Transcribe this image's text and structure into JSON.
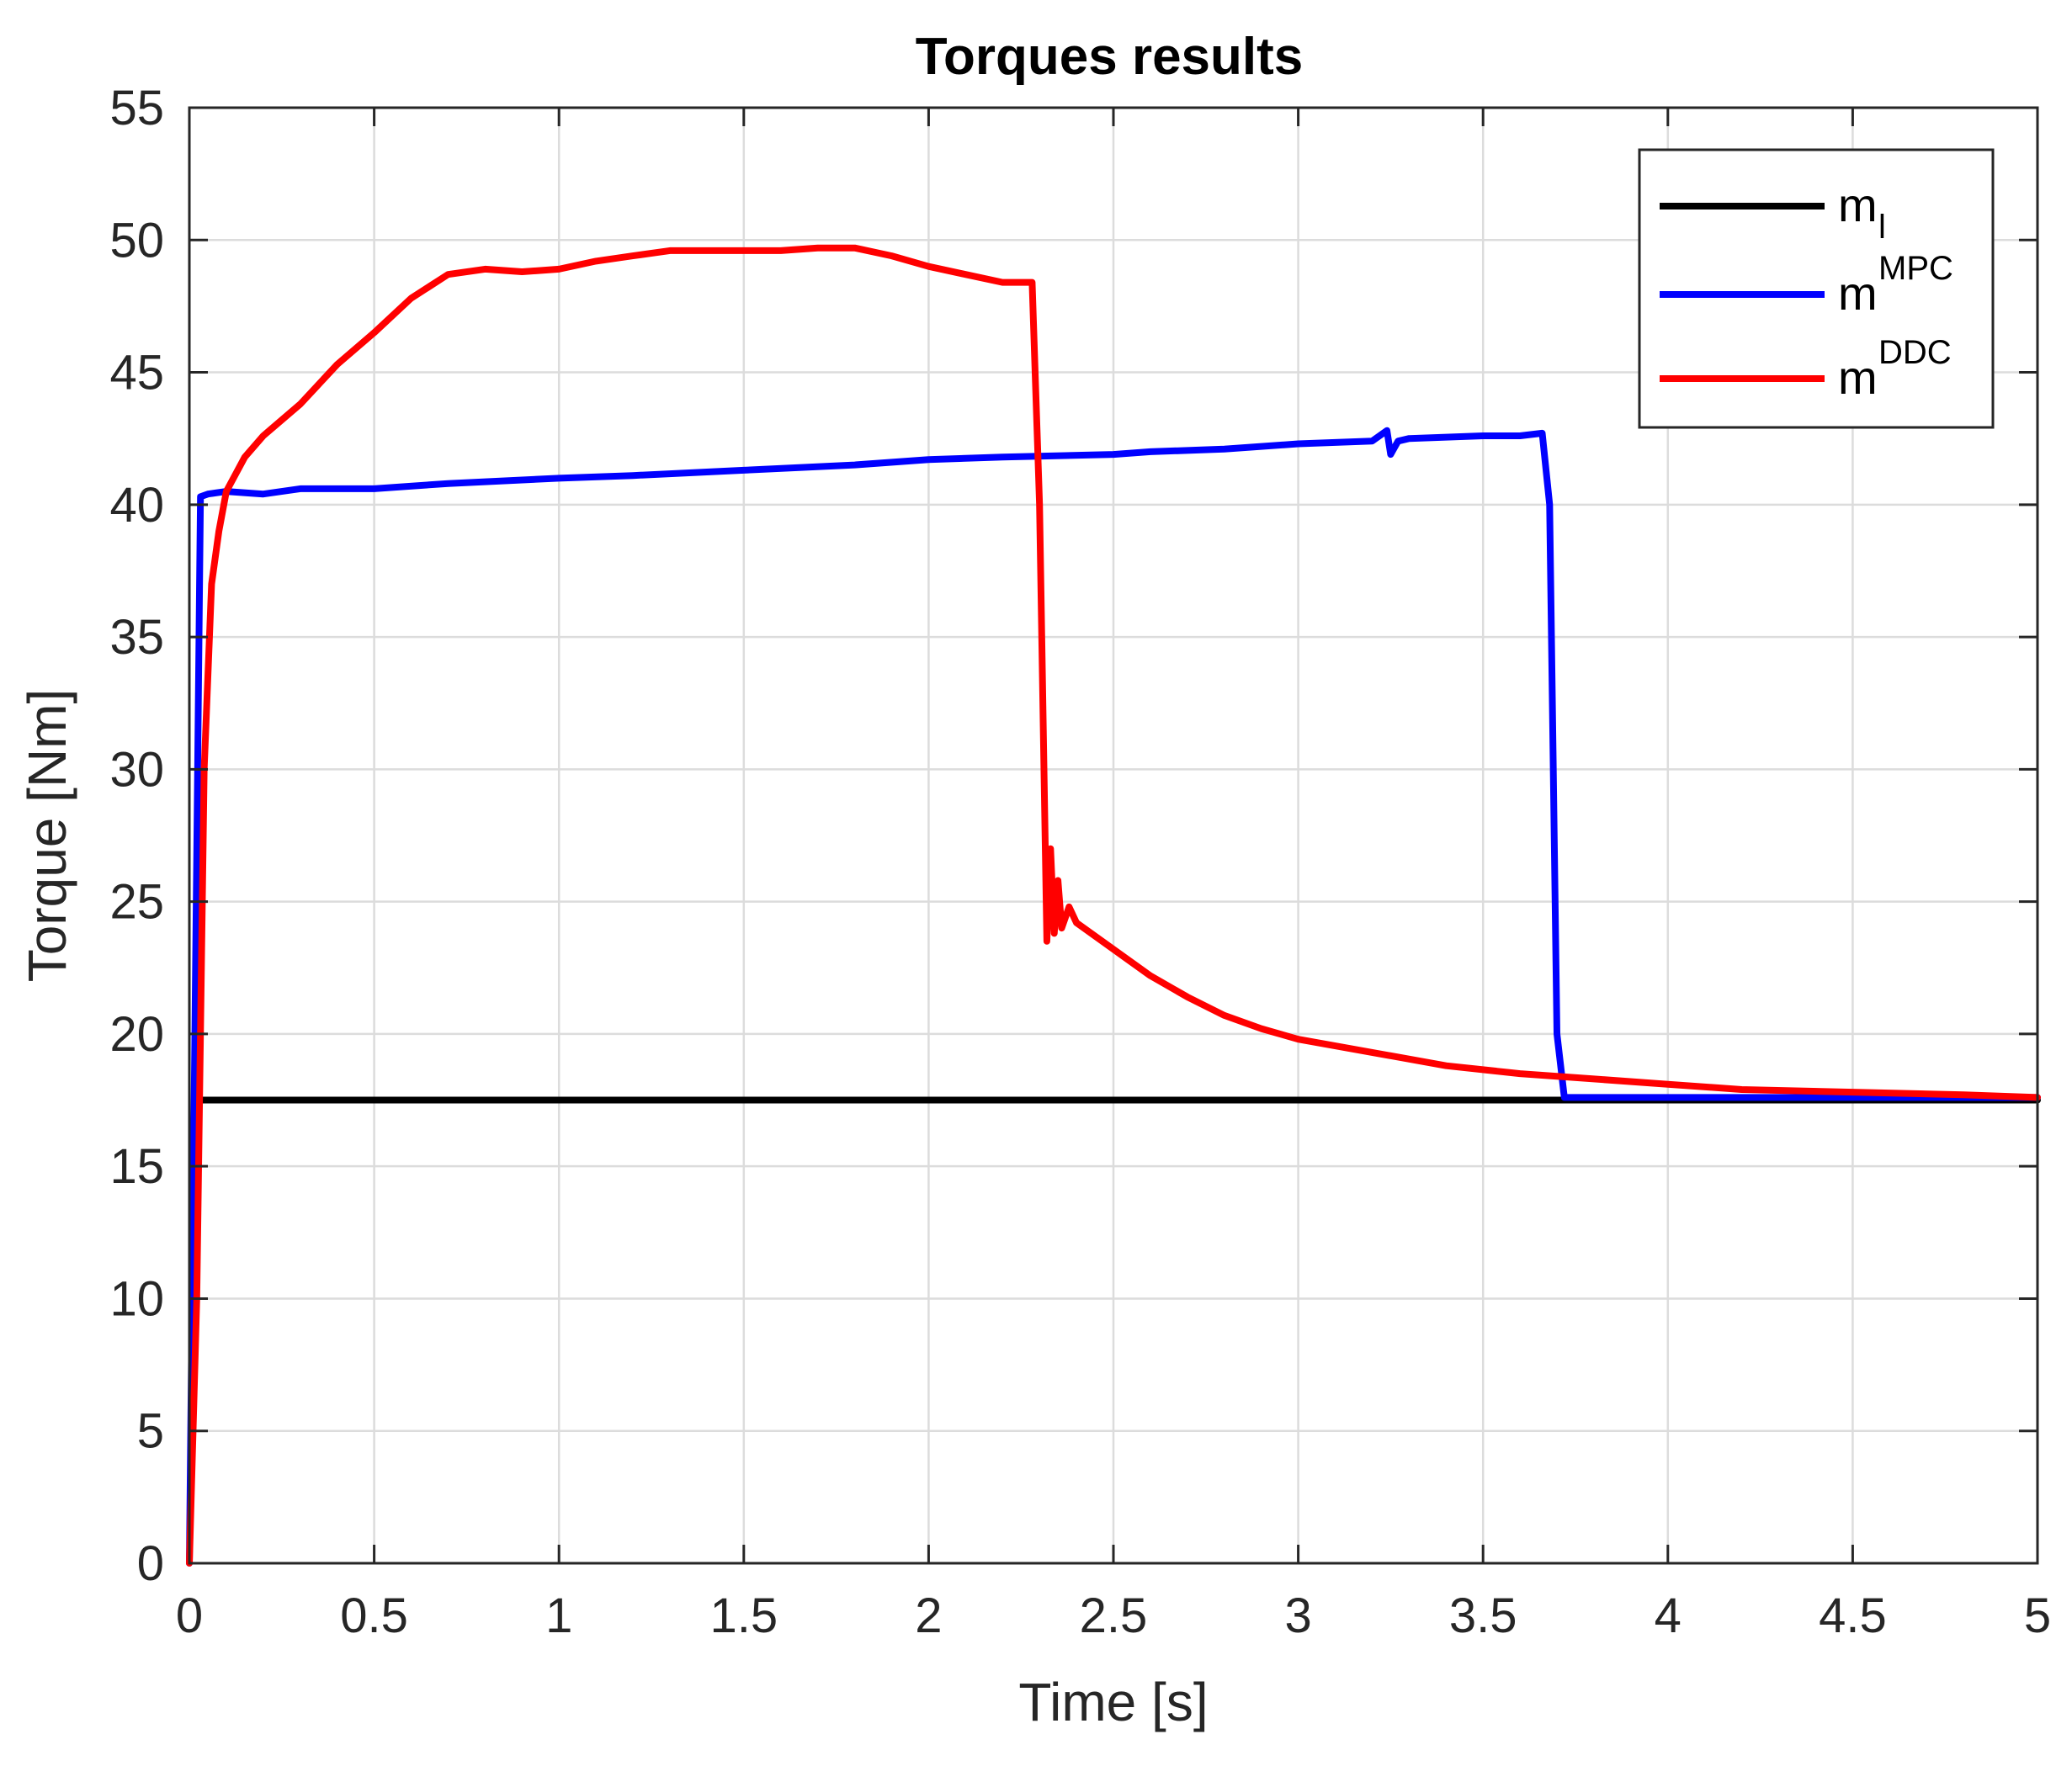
{
  "chart_data": {
    "type": "line",
    "title": "Torques results",
    "xlabel": "Time [s]",
    "ylabel": "Torque [Nm]",
    "xlim": [
      0,
      5
    ],
    "ylim": [
      0,
      55
    ],
    "xticks": [
      0,
      0.5,
      1,
      1.5,
      2,
      2.5,
      3,
      3.5,
      4,
      4.5,
      5
    ],
    "xtick_labels": [
      "0",
      "0.5",
      "1",
      "1.5",
      "2",
      "2.5",
      "3",
      "3.5",
      "4",
      "4.5",
      "5"
    ],
    "yticks": [
      0,
      5,
      10,
      15,
      20,
      25,
      30,
      35,
      40,
      45,
      50,
      55
    ],
    "ytick_labels": [
      "0",
      "5",
      "10",
      "15",
      "20",
      "25",
      "30",
      "35",
      "40",
      "45",
      "50",
      "55"
    ],
    "grid": true,
    "legend_position": "top-right",
    "series": [
      {
        "name": "m",
        "subscript": "l",
        "color": "#000000",
        "x": [
          0.03,
          5.0
        ],
        "y": [
          17.5,
          17.5
        ]
      },
      {
        "name": "m",
        "superscript": "MPC",
        "color": "#0000ff",
        "x": [
          0.0,
          0.03,
          0.05,
          0.1,
          0.2,
          0.3,
          0.5,
          0.7,
          1.0,
          1.2,
          1.5,
          1.8,
          2.0,
          2.2,
          2.5,
          2.6,
          2.8,
          3.0,
          3.2,
          3.24,
          3.25,
          3.27,
          3.3,
          3.5,
          3.6,
          3.66,
          3.68,
          3.7,
          3.72,
          4.0,
          4.5,
          5.0
        ],
        "y": [
          0.0,
          40.3,
          40.4,
          40.5,
          40.4,
          40.6,
          40.6,
          40.8,
          41.0,
          41.1,
          41.3,
          41.5,
          41.7,
          41.8,
          41.9,
          42.0,
          42.1,
          42.3,
          42.4,
          42.8,
          41.9,
          42.4,
          42.5,
          42.6,
          42.6,
          42.7,
          40.0,
          20.0,
          17.6,
          17.6,
          17.6,
          17.6
        ]
      },
      {
        "name": "m",
        "superscript": "DDC",
        "color": "#ff0000",
        "x": [
          0.0,
          0.02,
          0.04,
          0.06,
          0.08,
          0.1,
          0.15,
          0.2,
          0.3,
          0.4,
          0.5,
          0.6,
          0.7,
          0.8,
          0.9,
          1.0,
          1.1,
          1.2,
          1.3,
          1.4,
          1.5,
          1.6,
          1.7,
          1.8,
          1.9,
          2.0,
          2.1,
          2.2,
          2.28,
          2.3,
          2.32,
          2.33,
          2.34,
          2.35,
          2.36,
          2.38,
          2.4,
          2.5,
          2.6,
          2.7,
          2.8,
          2.9,
          3.0,
          3.2,
          3.4,
          3.6,
          3.8,
          4.0,
          4.2,
          4.5,
          4.8,
          5.0
        ],
        "y": [
          0.0,
          10.0,
          30.0,
          37.0,
          39.0,
          40.5,
          41.8,
          42.6,
          43.8,
          45.3,
          46.5,
          47.8,
          48.7,
          48.9,
          48.8,
          48.9,
          49.2,
          49.4,
          49.6,
          49.6,
          49.6,
          49.6,
          49.7,
          49.7,
          49.4,
          49.0,
          48.7,
          48.4,
          48.4,
          40.0,
          23.5,
          27.0,
          23.8,
          25.8,
          24.0,
          24.8,
          24.2,
          23.2,
          22.2,
          21.4,
          20.7,
          20.2,
          19.8,
          19.3,
          18.8,
          18.5,
          18.3,
          18.1,
          17.9,
          17.8,
          17.7,
          17.6
        ]
      }
    ]
  }
}
